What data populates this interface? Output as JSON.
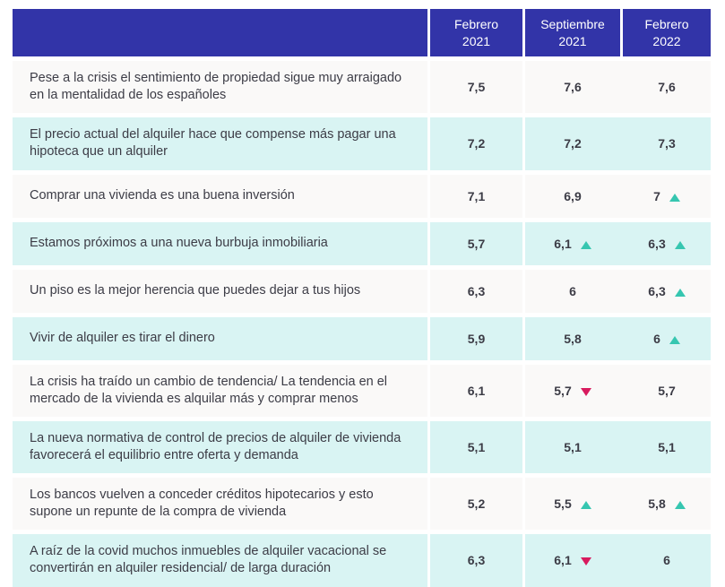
{
  "header": {
    "columns": [
      {
        "line1": "Febrero",
        "line2": "2021"
      },
      {
        "line1": "Septiembre",
        "line2": "2021"
      },
      {
        "line1": "Febrero",
        "line2": "2022"
      }
    ]
  },
  "rows": [
    {
      "statement": "Pese a la crisis el sentimiento de propiedad sigue muy arraigado en la mentalidad de los españoles",
      "values": [
        {
          "value": "7,5",
          "trend": "none"
        },
        {
          "value": "7,6",
          "trend": "none"
        },
        {
          "value": "7,6",
          "trend": "none"
        }
      ]
    },
    {
      "statement": "El precio actual del alquiler hace que compense más pagar una hipoteca que un alquiler",
      "values": [
        {
          "value": "7,2",
          "trend": "none"
        },
        {
          "value": "7,2",
          "trend": "none"
        },
        {
          "value": "7,3",
          "trend": "none"
        }
      ]
    },
    {
      "statement": "Comprar una vivienda es una buena inversión",
      "values": [
        {
          "value": "7,1",
          "trend": "none"
        },
        {
          "value": "6,9",
          "trend": "none"
        },
        {
          "value": "7",
          "trend": "up"
        }
      ]
    },
    {
      "statement": "Estamos próximos a una nueva burbuja inmobiliaria",
      "values": [
        {
          "value": "5,7",
          "trend": "none"
        },
        {
          "value": "6,1",
          "trend": "up"
        },
        {
          "value": "6,3",
          "trend": "up"
        }
      ]
    },
    {
      "statement": "Un piso es la mejor herencia que puedes dejar a tus hijos",
      "values": [
        {
          "value": "6,3",
          "trend": "none"
        },
        {
          "value": "6",
          "trend": "none"
        },
        {
          "value": "6,3",
          "trend": "up"
        }
      ]
    },
    {
      "statement": "Vivir de alquiler es tirar el dinero",
      "values": [
        {
          "value": "5,9",
          "trend": "none"
        },
        {
          "value": "5,8",
          "trend": "none"
        },
        {
          "value": "6",
          "trend": "up"
        }
      ]
    },
    {
      "statement": "La crisis ha traído un cambio de tendencia/ La tendencia en el mercado de la vivienda es alquilar más y comprar menos",
      "values": [
        {
          "value": "6,1",
          "trend": "none"
        },
        {
          "value": "5,7",
          "trend": "down"
        },
        {
          "value": "5,7",
          "trend": "none"
        }
      ]
    },
    {
      "statement": "La nueva normativa de control de precios de alquiler de vivienda favore­cerá el equilibrio entre oferta y demanda",
      "values": [
        {
          "value": "5,1",
          "trend": "none"
        },
        {
          "value": "5,1",
          "trend": "none"
        },
        {
          "value": "5,1",
          "trend": "none"
        }
      ]
    },
    {
      "statement": "Los bancos vuelven a conceder créditos hipotecarios y esto supone un repunte de la compra de vivienda",
      "values": [
        {
          "value": "5,2",
          "trend": "none"
        },
        {
          "value": "5,5",
          "trend": "up"
        },
        {
          "value": "5,8",
          "trend": "up"
        }
      ]
    },
    {
      "statement": "A raíz de la covid muchos inmuebles de alquiler vacacional se convertirán en alquiler residencial/ de larga duración",
      "values": [
        {
          "value": "6,3",
          "trend": "none"
        },
        {
          "value": "6,1",
          "trend": "down"
        },
        {
          "value": "6",
          "trend": "none"
        }
      ]
    }
  ],
  "colors": {
    "header_background": "#3234a8",
    "row_alt_background": "#d9f4f3",
    "row_background": "#faf9f8",
    "text": "#3c3c46",
    "trend_up": "#36c6b0",
    "trend_down": "#d81b5e"
  }
}
